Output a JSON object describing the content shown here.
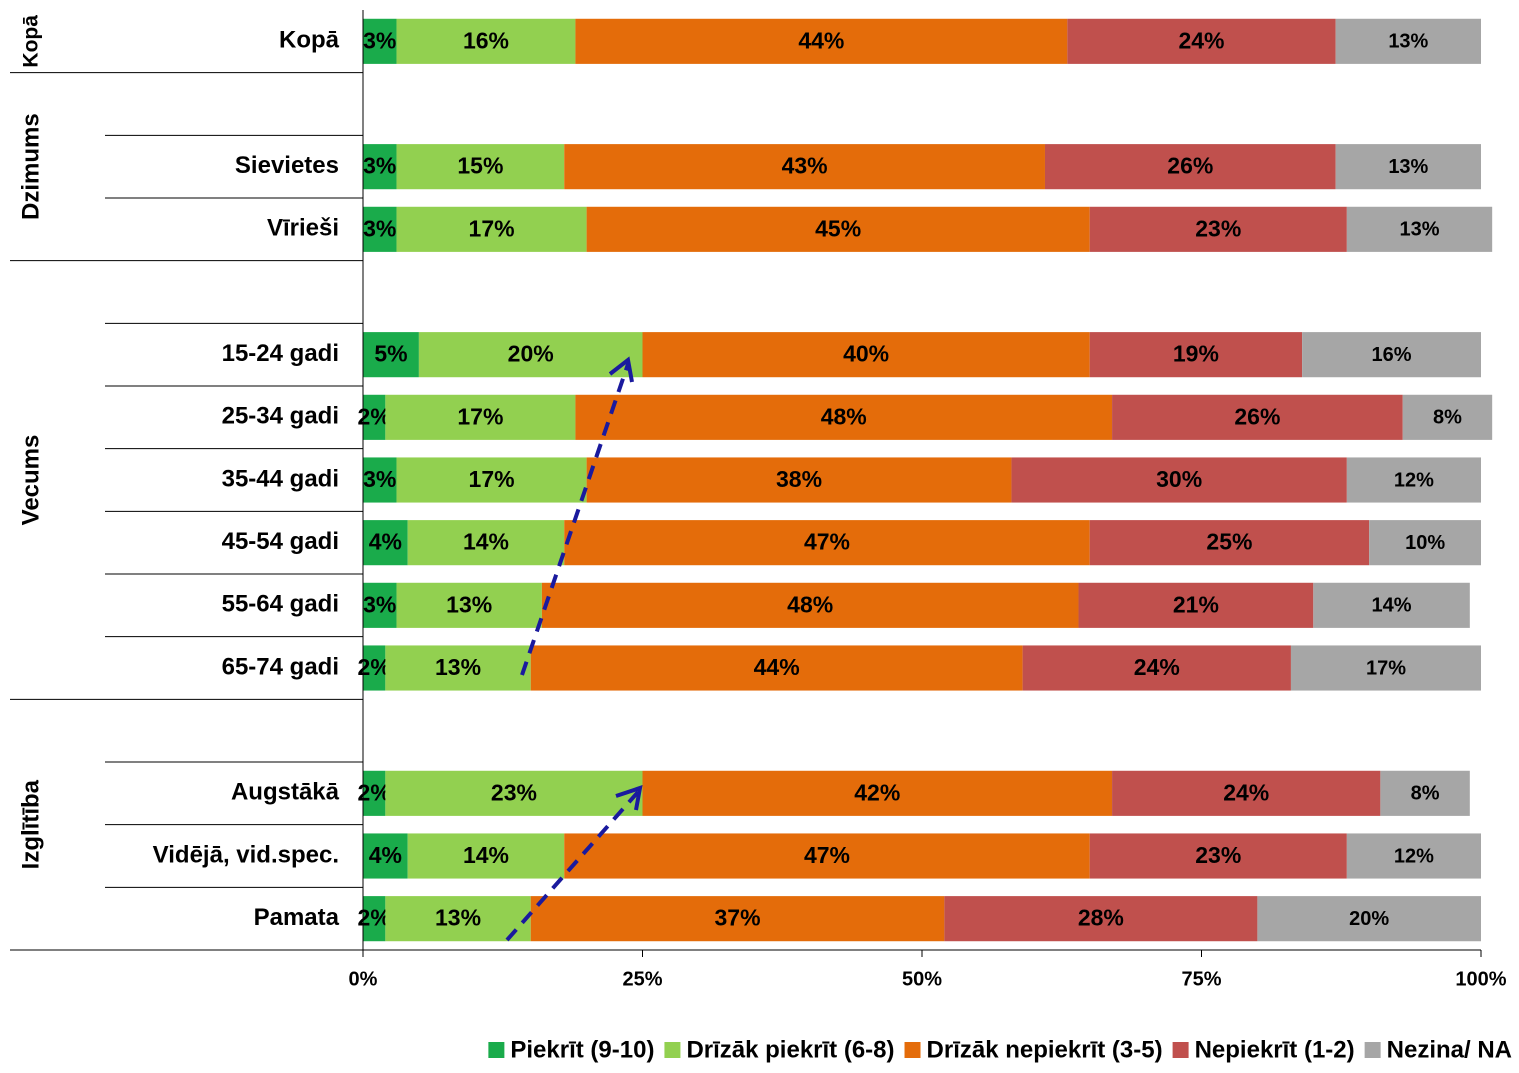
{
  "chart_data": {
    "type": "stacked-bar-horizontal",
    "categories": [
      "Kopā",
      null,
      "Sievietes",
      "Vīrieši",
      null,
      "15-24 gadi",
      "25-34 gadi",
      "35-44 gadi",
      "45-54 gadi",
      "55-64 gadi",
      "65-74 gadi",
      null,
      "Augstākā",
      "Vidējā, vid.spec.",
      "Pamata"
    ],
    "groups": [
      "Kopā",
      "Dzimums",
      "Vecums",
      "Izglītība"
    ],
    "series": [
      {
        "name": "Piekrīt (9-10)",
        "color": "#1aab4b",
        "values": [
          3,
          null,
          3,
          3,
          null,
          5,
          2,
          3,
          4,
          3,
          2,
          null,
          2,
          4,
          2
        ],
        "value_labels": [
          "3%",
          null,
          "3%",
          "3%",
          null,
          "5%",
          "2%",
          "3%",
          "4%",
          "3%",
          "2%",
          null,
          "2%",
          "4%",
          "2%"
        ]
      },
      {
        "name": "Drīzāk piekrīt (6-8)",
        "color": "#92d050",
        "values": [
          16,
          null,
          15,
          17,
          null,
          20,
          17,
          17,
          14,
          13,
          13,
          null,
          23,
          14,
          13
        ],
        "value_labels": [
          "16%",
          null,
          "15%",
          "17%",
          null,
          "20%",
          "17%",
          "17%",
          "14%",
          "13%",
          "13%",
          null,
          "23%",
          "14%",
          "13%"
        ]
      },
      {
        "name": "Drīzāk nepiekrīt (3-5)",
        "color": "#e46c0a",
        "values": [
          44,
          null,
          43,
          45,
          null,
          40,
          48,
          38,
          47,
          48,
          44,
          null,
          42,
          47,
          37
        ],
        "value_labels": [
          "44%",
          null,
          "43%",
          "45%",
          null,
          "40%",
          "48%",
          "38%",
          "47%",
          "48%",
          "44%",
          null,
          "42%",
          "47%",
          "37%"
        ]
      },
      {
        "name": "Nepiekrīt (1-2)",
        "color": "#c0504d",
        "values": [
          24,
          null,
          26,
          23,
          null,
          19,
          26,
          30,
          25,
          21,
          24,
          null,
          24,
          23,
          28
        ],
        "value_labels": [
          "24%",
          null,
          "26%",
          "23%",
          null,
          "19%",
          "26%",
          "30%",
          "25%",
          "21%",
          "24%",
          null,
          "24%",
          "23%",
          "28%"
        ]
      },
      {
        "name": "Nezina/ NA",
        "color": "#a6a6a6",
        "values": [
          13,
          null,
          13,
          13,
          null,
          16,
          8,
          12,
          10,
          14,
          17,
          null,
          8,
          12,
          20
        ],
        "value_labels": [
          "13%",
          null,
          "13%",
          "13%",
          null,
          "16%",
          "8%",
          "12%",
          "10%",
          "14%",
          "17%",
          null,
          "8%",
          "12%",
          "20%"
        ]
      }
    ],
    "xlim": [
      0,
      100
    ],
    "xticks": [
      {
        "value": 0,
        "label": "0%"
      },
      {
        "value": 25,
        "label": "25%"
      },
      {
        "value": 50,
        "label": "50%"
      },
      {
        "value": 75,
        "label": "75%"
      },
      {
        "value": 100,
        "label": "100%"
      }
    ],
    "legend": "bottom"
  }
}
